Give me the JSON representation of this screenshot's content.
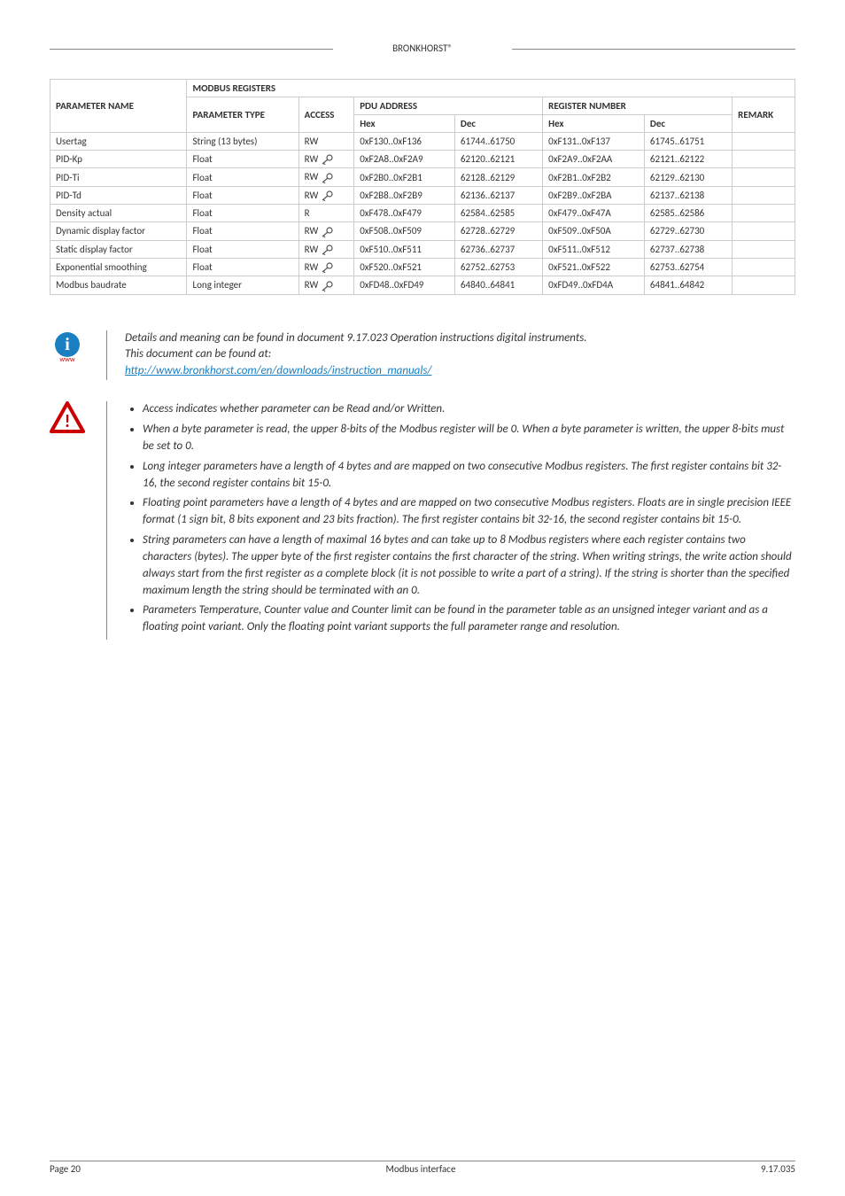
{
  "header": {
    "brand": "BRONKHORST®"
  },
  "table": {
    "header": {
      "modbus": "MODBUS REGISTERS",
      "param_name": "PARAMETER NAME",
      "param_type": "PARAMETER TYPE",
      "access": "ACCESS",
      "pdu": "PDU ADDRESS",
      "regnum": "REGISTER NUMBER",
      "remark": "REMARK",
      "hex": "Hex",
      "dec": "Dec"
    },
    "rows": [
      {
        "name": "Usertag",
        "type": "String (13 bytes)",
        "access": "RW",
        "key": false,
        "pduhex": "0xF130..0xF136",
        "pdudec": "61744..61750",
        "reghex": "0xF131..0xF137",
        "regdec": "61745..61751",
        "remark": ""
      },
      {
        "name": "PID-Kp",
        "type": "Float",
        "access": "RW",
        "key": true,
        "pduhex": "0xF2A8..0xF2A9",
        "pdudec": "62120..62121",
        "reghex": "0xF2A9..0xF2AA",
        "regdec": "62121..62122",
        "remark": ""
      },
      {
        "name": "PID-Ti",
        "type": "Float",
        "access": "RW",
        "key": true,
        "pduhex": "0xF2B0..0xF2B1",
        "pdudec": "62128..62129",
        "reghex": "0xF2B1..0xF2B2",
        "regdec": "62129..62130",
        "remark": ""
      },
      {
        "name": "PID-Td",
        "type": "Float",
        "access": "RW",
        "key": true,
        "pduhex": "0xF2B8..0xF2B9",
        "pdudec": "62136..62137",
        "reghex": "0xF2B9..0xF2BA",
        "regdec": "62137..62138",
        "remark": ""
      },
      {
        "name": "Density actual",
        "type": "Float",
        "access": "R",
        "key": false,
        "pduhex": "0xF478..0xF479",
        "pdudec": "62584..62585",
        "reghex": "0xF479..0xF47A",
        "regdec": "62585..62586",
        "remark": ""
      },
      {
        "name": "Dynamic display factor",
        "type": "Float",
        "access": "RW",
        "key": true,
        "pduhex": "0xF508..0xF509",
        "pdudec": "62728..62729",
        "reghex": "0xF509..0xF50A",
        "regdec": "62729..62730",
        "remark": ""
      },
      {
        "name": "Static display factor",
        "type": "Float",
        "access": "RW",
        "key": true,
        "pduhex": "0xF510..0xF511",
        "pdudec": "62736..62737",
        "reghex": "0xF511..0xF512",
        "regdec": "62737..62738",
        "remark": ""
      },
      {
        "name": "Exponential smoothing",
        "type": "Float",
        "access": "RW",
        "key": true,
        "pduhex": "0xF520..0xF521",
        "pdudec": "62752..62753",
        "reghex": "0xF521..0xF522",
        "regdec": "62753..62754",
        "remark": ""
      },
      {
        "name": "Modbus baudrate",
        "type": "Long integer",
        "access": "RW",
        "key": true,
        "pduhex": "0xFD48..0xFD49",
        "pdudec": "64840..64841",
        "reghex": "0xFD49..0xFD4A",
        "regdec": "64841..64842",
        "remark": ""
      }
    ]
  },
  "infoBlock": {
    "line1": "Details and meaning can be found in document 9.17.023 Operation instructions digital instruments.",
    "line2": "This document can be found at:",
    "link": "http://www.bronkhorst.com/en/downloads/instruction_manuals/"
  },
  "bullets": [
    "Access indicates whether parameter can be Read and/or Written.",
    "When a byte parameter is read, the upper 8-bits of the Modbus register will be 0. When a byte parameter is written, the upper 8-bits must be set to 0.",
    "Long integer parameters have a length of 4 bytes and are mapped on two consecutive Modbus registers. The first register contains bit 32-16, the second register contains bit 15-0.",
    "Floating point parameters have a length of 4 bytes and are mapped on two consecutive Modbus registers. Floats are in single precision IEEE format (1 sign bit, 8 bits exponent and 23 bits fraction). The first register contains bit 32-16, the second register contains bit 15-0.",
    "String parameters can have a length of maximal 16 bytes and can take up to 8 Modbus registers where each register contains two characters (bytes). The upper byte of the first register contains the first character of the string. When writing strings, the write action should always start from the first register as a complete block (it is not possible to write a part of a string). If the string is shorter than the specified maximum length the string should be terminated with an 0.",
    "Parameters Temperature, Counter value and Counter limit can be found in the parameter table as an unsigned integer variant and as a floating point variant. Only the floating point variant supports the full parameter range and resolution."
  ],
  "footer": {
    "left": "Page 20",
    "center": "Modbus interface",
    "right": "9.17.035"
  }
}
